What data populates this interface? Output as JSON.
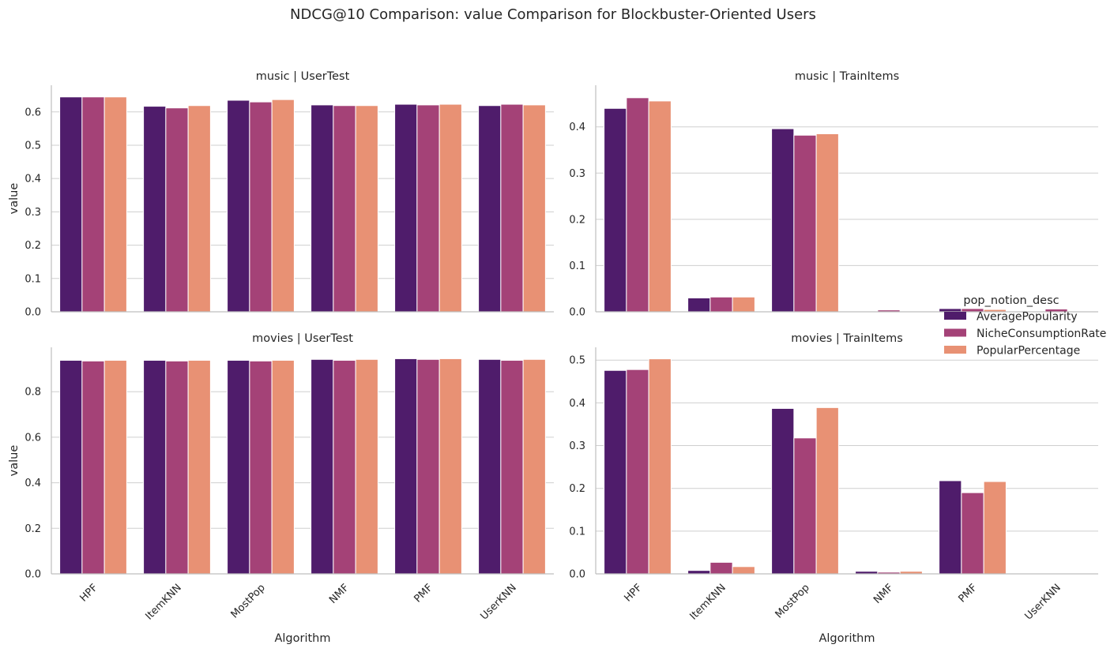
{
  "suptitle": "NDCG@10 Comparison: value Comparison for Blockbuster-Oriented Users",
  "legend": {
    "title": "pop_notion_desc",
    "placement": "right, between rows"
  },
  "colors": {
    "AveragePopularity": "#4f1c6b",
    "NicheConsumptionRate": "#a44277",
    "PopularPercentage": "#e89174",
    "grid": "#cfcfcf",
    "axis": "#bfbfbf"
  },
  "chart_data": [
    {
      "type": "bar",
      "title": "music | UserTest",
      "xlabel": "",
      "ylabel": "value",
      "ylim": [
        0,
        0.68
      ],
      "yticks": [
        "0.0",
        "0.1",
        "0.2",
        "0.3",
        "0.4",
        "0.5",
        "0.6"
      ],
      "grid": "horizontal",
      "categories": [
        "HPF",
        "ItemKNN",
        "MostPop",
        "NMF",
        "PMF",
        "UserKNN"
      ],
      "series": [
        {
          "name": "AveragePopularity",
          "values": [
            0.645,
            0.617,
            0.635,
            0.621,
            0.623,
            0.619
          ]
        },
        {
          "name": "NicheConsumptionRate",
          "values": [
            0.645,
            0.612,
            0.63,
            0.619,
            0.621,
            0.623
          ]
        },
        {
          "name": "PopularPercentage",
          "values": [
            0.645,
            0.619,
            0.637,
            0.619,
            0.623,
            0.621
          ]
        }
      ]
    },
    {
      "type": "bar",
      "title": "music | TrainItems",
      "xlabel": "",
      "ylabel": "",
      "ylim": [
        0,
        0.49
      ],
      "yticks": [
        "0.0",
        "0.1",
        "0.2",
        "0.3",
        "0.4"
      ],
      "grid": "horizontal",
      "categories": [
        "HPF",
        "ItemKNN",
        "MostPop",
        "NMF",
        "PMF",
        "UserKNN"
      ],
      "series": [
        {
          "name": "AveragePopularity",
          "values": [
            0.44,
            0.03,
            0.396,
            0.0,
            0.007,
            0.0
          ]
        },
        {
          "name": "NicheConsumptionRate",
          "values": [
            0.463,
            0.032,
            0.382,
            0.004,
            0.007,
            0.006
          ]
        },
        {
          "name": "PopularPercentage",
          "values": [
            0.456,
            0.032,
            0.385,
            0.0,
            0.005,
            0.0
          ]
        }
      ]
    },
    {
      "type": "bar",
      "title": "movies | UserTest",
      "xlabel": "Algorithm",
      "ylabel": "value",
      "ylim": [
        0,
        0.995
      ],
      "yticks": [
        "0.0",
        "0.2",
        "0.4",
        "0.6",
        "0.8"
      ],
      "grid": "horizontal",
      "categories": [
        "HPF",
        "ItemKNN",
        "MostPop",
        "NMF",
        "PMF",
        "UserKNN"
      ],
      "series": [
        {
          "name": "AveragePopularity",
          "values": [
            0.938,
            0.938,
            0.938,
            0.942,
            0.945,
            0.942
          ]
        },
        {
          "name": "NicheConsumptionRate",
          "values": [
            0.935,
            0.935,
            0.935,
            0.938,
            0.942,
            0.938
          ]
        },
        {
          "name": "PopularPercentage",
          "values": [
            0.938,
            0.938,
            0.938,
            0.942,
            0.945,
            0.942
          ]
        }
      ]
    },
    {
      "type": "bar",
      "title": "movies | TrainItems",
      "xlabel": "Algorithm",
      "ylabel": "",
      "ylim": [
        0,
        0.53
      ],
      "yticks": [
        "0.0",
        "0.1",
        "0.2",
        "0.3",
        "0.4",
        "0.5"
      ],
      "grid": "horizontal",
      "categories": [
        "HPF",
        "ItemKNN",
        "MostPop",
        "NMF",
        "PMF",
        "UserKNN"
      ],
      "series": [
        {
          "name": "AveragePopularity",
          "values": [
            0.476,
            0.008,
            0.387,
            0.006,
            0.218,
            0.0
          ]
        },
        {
          "name": "NicheConsumptionRate",
          "values": [
            0.478,
            0.027,
            0.318,
            0.004,
            0.19,
            0.0
          ]
        },
        {
          "name": "PopularPercentage",
          "values": [
            0.503,
            0.017,
            0.389,
            0.006,
            0.216,
            0.0
          ]
        }
      ]
    }
  ]
}
